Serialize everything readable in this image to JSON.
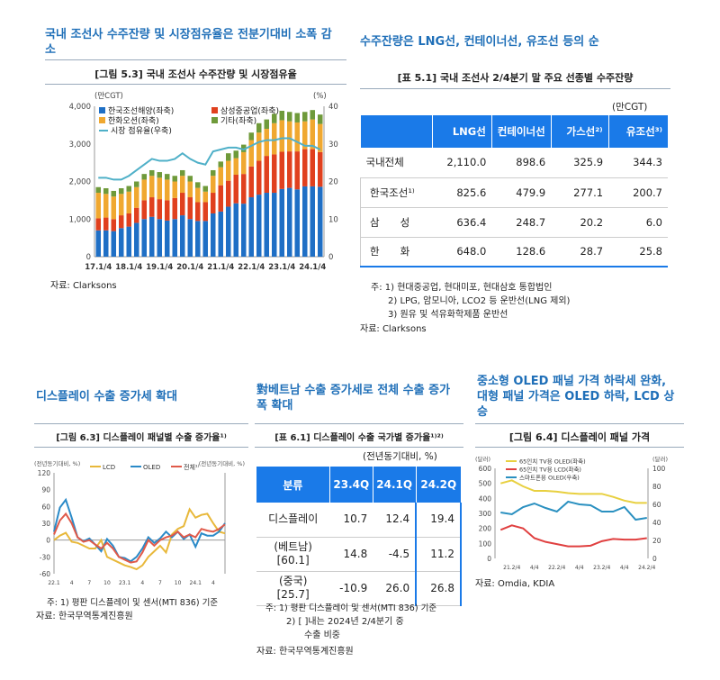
{
  "top_left": {
    "section_title": "국내 조선사 수주잔량 및 시장점유율은 전분기대비 소폭 감소",
    "figure_title": "[그림 5.3] 국내 조선사 수주잔량 및 시장점유율",
    "source": "자료: Clarksons"
  },
  "top_right": {
    "section_title": "수주잔량은 LNG선, 컨테이너선, 유조선 등의 순",
    "table_title": "[표 5.1] 국내 조선사 2/4분기 말 주요 선종별 수주잔량",
    "unit": "(만CGT)",
    "headers": [
      "",
      "LNG선",
      "컨테이너선",
      "가스선²⁾",
      "유조선³⁾"
    ],
    "rows": [
      {
        "label": "국내전체",
        "values": [
          "2,110.0",
          "898.6",
          "325.9",
          "344.3"
        ]
      },
      {
        "label": "한국조선¹⁾",
        "values": [
          "825.6",
          "479.9",
          "277.1",
          "200.7"
        ]
      },
      {
        "label": "삼　　성",
        "values": [
          "636.4",
          "248.7",
          "20.2",
          "6.0"
        ]
      },
      {
        "label": "한　　화",
        "values": [
          "648.0",
          "128.6",
          "28.7",
          "25.8"
        ]
      }
    ],
    "notes": [
      "주: 1) 현대중공업, 현대미포, 현대삼호 통합법인",
      "2) LPG, 암모니아, LCO2 등 운반선(LNG 제외)",
      "3) 원유 및 석유화학제품 운반선"
    ],
    "source": "자료: Clarksons"
  },
  "bottom_left": {
    "section_title": "디스플레이 수출 증가세 확대",
    "figure_title": "[그림 6.3] 디스플레이 패널별 수출 증가율¹⁾",
    "note": "주: 1) 평판 디스플레이 및 센서(MTI 836) 기준",
    "source": "자료: 한국무역통계진흥원"
  },
  "bottom_mid": {
    "section_title": "對베트남 수출 증가세로 전체 수출 증가폭 확대",
    "table_title": "[표 6.1] 디스플레이 수출 국가별 증가율¹⁾²⁾",
    "unit": "(전년동기대비, %)",
    "headers": [
      "분류",
      "23.4Q",
      "24.1Q",
      "24.2Q"
    ],
    "rows": [
      {
        "label": "디스플레이",
        "sub": "",
        "values": [
          "10.7",
          "12.4",
          "19.4"
        ]
      },
      {
        "label": "(베트남)",
        "sub": "[60.1]",
        "values": [
          "14.8",
          "-4.5",
          "11.2"
        ]
      },
      {
        "label": "(중국)",
        "sub": "[25.7]",
        "values": [
          "-10.9",
          "26.0",
          "26.8"
        ]
      }
    ],
    "notes": [
      "주: 1) 평판 디스플레이 및 센서(MTI 836) 기준",
      "2) [ ]내는 2024년 2/4분기 중",
      "수출 비중"
    ],
    "source": "자료: 한국무역통계진흥원"
  },
  "bottom_right": {
    "section_title": "중소형 OLED 패널 가격 하락세 완화, 대형 패널 가격은 OLED 하락, LCD 상승",
    "figure_title": "[그림 6.4] 디스플레이 패널 가격",
    "source": "자료: Omdia, KDIA"
  },
  "chart_data": [
    {
      "id": "fig53",
      "type": "bar",
      "stacked": true,
      "ylabel_left": "(만CGT)",
      "ylabel_right": "(%)",
      "ylim": [
        0,
        4000
      ],
      "ylim_right": [
        0,
        40
      ],
      "yticks": [
        "0",
        "1,000",
        "2,000",
        "3,000",
        "4,000"
      ],
      "yticks_right": [
        "0",
        "10",
        "20",
        "30",
        "40"
      ],
      "xtick_labels": [
        "17.1/4",
        "18.1/4",
        "19.1/4",
        "20.1/4",
        "21.1/4",
        "22.1/4",
        "23.1/4",
        "24.1/4"
      ],
      "legend": "top-left",
      "series": [
        {
          "name": "한국조선해양(좌축)",
          "color": "#1f6fc5",
          "values": [
            700,
            700,
            680,
            760,
            800,
            900,
            1000,
            1060,
            1000,
            960,
            1000,
            1100,
            1000,
            950,
            950,
            1150,
            1200,
            1330,
            1420,
            1410,
            1580,
            1650,
            1700,
            1700,
            1800,
            1830,
            1790,
            1870,
            1870,
            1860
          ]
        },
        {
          "name": "삼성중공업(좌축)",
          "color": "#e0401e",
          "values": [
            320,
            340,
            320,
            340,
            350,
            400,
            500,
            520,
            530,
            540,
            560,
            600,
            580,
            500,
            500,
            550,
            700,
            690,
            760,
            790,
            820,
            900,
            980,
            1020,
            990,
            970,
            1010,
            990,
            990,
            920
          ]
        },
        {
          "name": "한화오션(좌축)",
          "color": "#f0a830",
          "values": [
            680,
            630,
            600,
            570,
            580,
            550,
            550,
            570,
            570,
            550,
            440,
            450,
            420,
            380,
            280,
            450,
            480,
            530,
            440,
            580,
            700,
            750,
            720,
            830,
            840,
            800,
            770,
            740,
            790,
            750
          ]
        },
        {
          "name": "기타(좌축)",
          "color": "#6f9a3a",
          "values": [
            150,
            150,
            150,
            150,
            150,
            150,
            150,
            150,
            150,
            150,
            150,
            150,
            150,
            150,
            150,
            150,
            150,
            200,
            200,
            200,
            200,
            250,
            250,
            250,
            250,
            250,
            250,
            250,
            250,
            250
          ]
        },
        {
          "name": "시장 점유율(우축)",
          "color": "#4fb0c8",
          "type": "line",
          "axis": "right",
          "values": [
            21,
            21,
            20.5,
            20.5,
            21.5,
            23,
            24.5,
            26,
            25.5,
            25.5,
            26,
            27.5,
            26,
            25,
            24.5,
            28,
            28.5,
            29,
            29,
            28.5,
            29.5,
            30.5,
            31,
            31,
            31.5,
            31.5,
            30.5,
            29.5,
            29.5,
            28.5
          ]
        }
      ]
    },
    {
      "id": "fig63",
      "type": "line",
      "ylabel_left": "(전년동기대비, %)",
      "ylabel_right": "(전년동기대비, %)",
      "ylim": [
        -60,
        120
      ],
      "yticks": [
        "-60",
        "-30",
        "0",
        "30",
        "60",
        "90",
        "120"
      ],
      "xtick_labels": [
        "22.1",
        "4",
        "7",
        "10",
        "23.1",
        "4",
        "7",
        "10",
        "24.1",
        "4"
      ],
      "legend": "top",
      "series": [
        {
          "name": "LCD",
          "color": "#e8b83a",
          "values": [
            0,
            8,
            13,
            -3,
            -5,
            -10,
            -15,
            -15,
            0,
            -30,
            -35,
            -40,
            -45,
            -48,
            -52,
            -45,
            -30,
            -20,
            -10,
            -22,
            10,
            20,
            25,
            55,
            40,
            45,
            47,
            30,
            15,
            12
          ]
        },
        {
          "name": "OLED",
          "color": "#2a8ac8",
          "values": [
            15,
            58,
            72,
            40,
            5,
            -2,
            3,
            -8,
            -20,
            2,
            -10,
            -30,
            -32,
            -38,
            -30,
            -15,
            5,
            -5,
            3,
            15,
            5,
            15,
            2,
            10,
            -12,
            12,
            8,
            8,
            15,
            30
          ]
        },
        {
          "name": "전체¹⁾",
          "color": "#e05a4a",
          "values": [
            10,
            35,
            47,
            30,
            5,
            -3,
            0,
            -8,
            -15,
            -5,
            -15,
            -30,
            -35,
            -40,
            -38,
            -22,
            0,
            -10,
            0,
            5,
            8,
            15,
            5,
            10,
            5,
            20,
            17,
            15,
            20,
            28
          ]
        }
      ]
    },
    {
      "id": "fig64",
      "type": "line",
      "ylabel_left": "(달러)",
      "ylabel_right": "(달러)",
      "ylim": [
        0,
        600
      ],
      "ylim_right": [
        0,
        100
      ],
      "yticks": [
        "0",
        "100",
        "200",
        "300",
        "400",
        "500",
        "600"
      ],
      "yticks_right": [
        "0",
        "20",
        "40",
        "60",
        "80",
        "100"
      ],
      "xtick_labels": [
        "21.2/4",
        "4/4",
        "22.2/4",
        "4/4",
        "23.2/4",
        "4/4",
        "24.2/4"
      ],
      "legend": "top-left",
      "series": [
        {
          "name": "65인치 TV용 OLED(좌축)",
          "color": "#e8d040",
          "values": [
            500,
            520,
            480,
            450,
            450,
            445,
            435,
            430,
            430,
            430,
            410,
            385,
            370,
            370
          ]
        },
        {
          "name": "65인치 TV용 LCD(좌축)",
          "color": "#e04040",
          "values": [
            190,
            220,
            200,
            135,
            110,
            95,
            80,
            80,
            85,
            115,
            130,
            125,
            125,
            135
          ]
        },
        {
          "name": "스마트폰용 OLED(우축)",
          "color": "#2a90c0",
          "axis": "right",
          "values": [
            51,
            49,
            57,
            61,
            56,
            52,
            63,
            60,
            59,
            52,
            52,
            57,
            43,
            45
          ]
        }
      ]
    }
  ]
}
